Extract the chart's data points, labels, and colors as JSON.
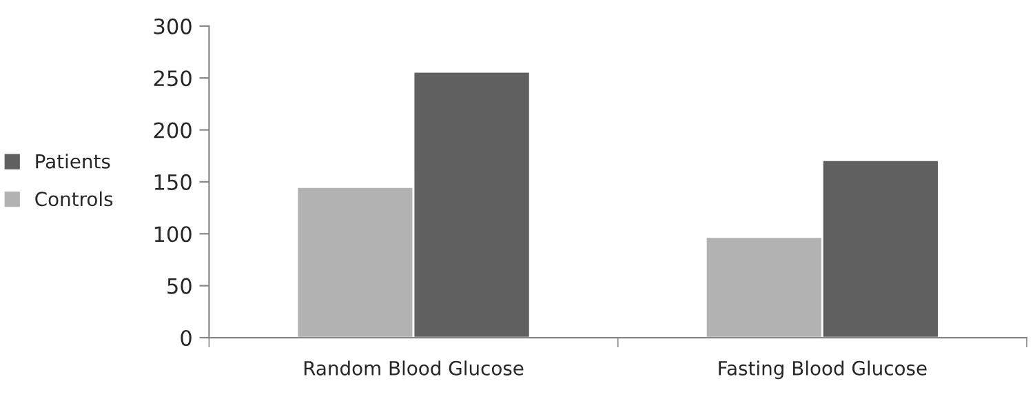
{
  "chart_data": {
    "type": "bar",
    "categories": [
      "Random Blood Glucose",
      "Fasting Blood Glucose"
    ],
    "series": [
      {
        "name": "Controls",
        "color": "#b2b2b2",
        "values": [
          145,
          97
        ]
      },
      {
        "name": "Patients",
        "color": "#606060",
        "values": [
          256,
          171
        ]
      }
    ],
    "ylim": [
      0,
      300
    ],
    "yticks": [
      0,
      50,
      100,
      150,
      200,
      250,
      300
    ],
    "grid": false,
    "legend": "left"
  }
}
